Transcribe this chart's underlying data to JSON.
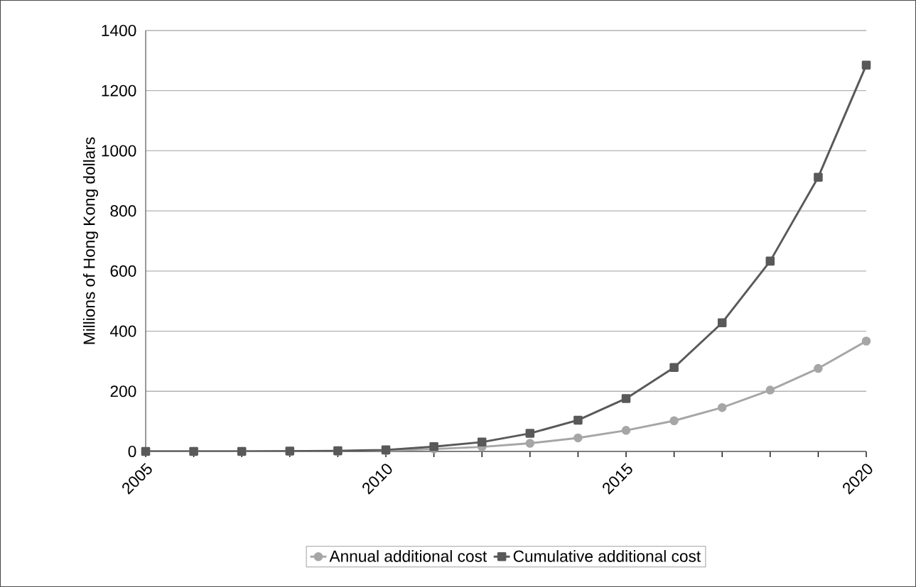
{
  "chart_data": {
    "type": "line",
    "ylabel": "Millions of Hong Kong dollars",
    "x": [
      2005,
      2006,
      2007,
      2008,
      2009,
      2010,
      2011,
      2012,
      2013,
      2014,
      2015,
      2016,
      2017,
      2018,
      2019,
      2020
    ],
    "series": [
      {
        "name": "Annual additional cost",
        "color": "#a6a6a6",
        "marker": "circle",
        "values": [
          0,
          0,
          0,
          0,
          1,
          3,
          8,
          15,
          27,
          45,
          70,
          102,
          146,
          204,
          276,
          367
        ]
      },
      {
        "name": "Cumulative additional cost",
        "color": "#595959",
        "marker": "square",
        "values": [
          0,
          0,
          0,
          1,
          2,
          5,
          16,
          31,
          60,
          104,
          176,
          279,
          428,
          633,
          912,
          1285
        ]
      }
    ],
    "xlim": [
      2005,
      2020
    ],
    "xticks": [
      2005,
      {
        "value": 2006,
        "label": null
      },
      {
        "value": 2007,
        "label": null
      },
      {
        "value": 2008,
        "label": null
      },
      {
        "value": 2009,
        "label": null
      },
      2010,
      {
        "value": 2011,
        "label": null
      },
      {
        "value": 2012,
        "label": null
      },
      {
        "value": 2013,
        "label": null
      },
      {
        "value": 2014,
        "label": null
      },
      2015,
      {
        "value": 2016,
        "label": null
      },
      {
        "value": 2017,
        "label": null
      },
      {
        "value": 2018,
        "label": null
      },
      {
        "value": 2019,
        "label": null
      },
      2020
    ],
    "ylim": [
      0,
      1400
    ],
    "yticks": [
      0,
      200,
      400,
      600,
      800,
      1000,
      1200,
      1400
    ],
    "grid": "y",
    "legend": "bottom",
    "line_style": "solid"
  }
}
